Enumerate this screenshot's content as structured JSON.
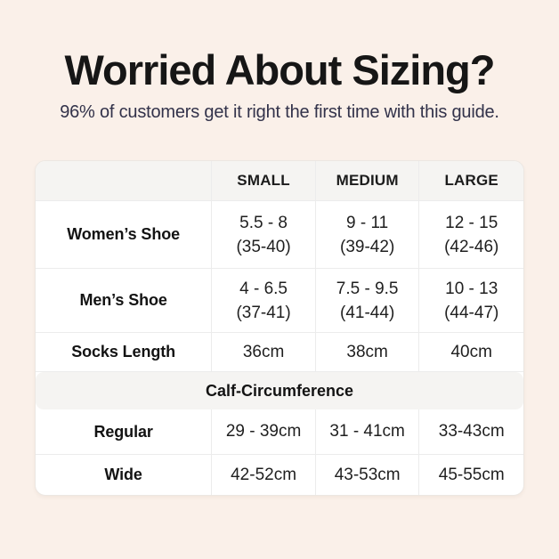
{
  "colors": {
    "background": "#faf0e9",
    "table_bg": "#ffffff",
    "band_bg": "#f5f4f2",
    "border": "#ececec",
    "title_color": "#161616",
    "subtitle_color": "#32324a"
  },
  "header": {
    "title": "Worried About Sizing?",
    "subtitle": "96% of customers get it right the first time with this guide."
  },
  "table": {
    "column_headers": [
      "SMALL",
      "MEDIUM",
      "LARGE"
    ],
    "shoe_rows": [
      {
        "label": "Women’s Shoe",
        "cells": [
          {
            "line1": "5.5 - 8",
            "line2": "(35-40)"
          },
          {
            "line1": "9 - 11",
            "line2": "(39-42)"
          },
          {
            "line1": "12 - 15",
            "line2": "(42-46)"
          }
        ]
      },
      {
        "label": "Men’s Shoe",
        "cells": [
          {
            "line1": "4 - 6.5",
            "line2": "(37-41)"
          },
          {
            "line1": "7.5 - 9.5",
            "line2": "(41-44)"
          },
          {
            "line1": "10 - 13",
            "line2": "(44-47)"
          }
        ]
      }
    ],
    "socks_row": {
      "label": "Socks Length",
      "values": [
        "36cm",
        "38cm",
        "40cm"
      ]
    },
    "calf_section_title": "Calf-Circumference",
    "calf_rows": [
      {
        "label": "Regular",
        "values": [
          "29 - 39cm",
          "31 - 41cm",
          "33-43cm"
        ]
      },
      {
        "label": "Wide",
        "values": [
          "42-52cm",
          "43-53cm",
          "45-55cm"
        ]
      }
    ]
  }
}
